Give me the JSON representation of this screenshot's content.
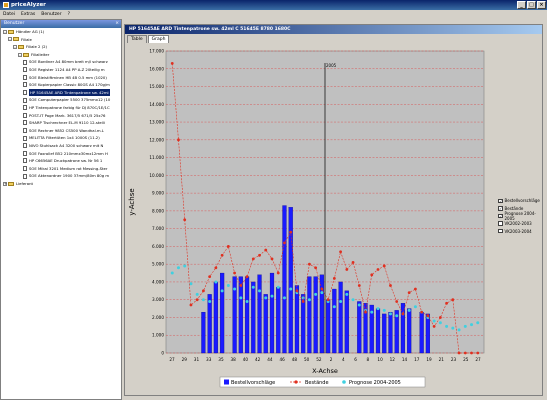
{
  "app": {
    "title": "priceAlyzer",
    "btn_min": "_",
    "btn_max": "□",
    "btn_close": "×"
  },
  "menu": [
    "Datei",
    "Extras",
    "Benutzer",
    "?"
  ],
  "tree": {
    "header": "Benutzer",
    "header_close": "×",
    "lines": [
      {
        "text": "Händler AG (1)",
        "indent": 0,
        "kind": "folder",
        "exp": "-"
      },
      {
        "text": "Filiale",
        "indent": 1,
        "kind": "folder",
        "exp": "-"
      },
      {
        "text": "Filiale 2 (2)",
        "indent": 2,
        "kind": "folder",
        "exp": "-"
      },
      {
        "text": "Filialleiter",
        "indent": 3,
        "kind": "folder",
        "exp": "-"
      },
      {
        "text": "SOE Bordiner A4 80mm breit m/l schwarz",
        "indent": 4,
        "kind": "doc"
      },
      {
        "text": "SOE Register 1124 A4 PP A-Z 20teilig m",
        "indent": 4,
        "kind": "doc"
      },
      {
        "text": "SOE Bleistiftminen HB 4B 0.5 mm (1020)",
        "indent": 4,
        "kind": "doc"
      },
      {
        "text": "SOE Kopierpapier Classic 80GS A4 170g/m",
        "indent": 4,
        "kind": "doc"
      },
      {
        "text": "HP 51645AE ARD Tintenpatrone sw. 42ml",
        "indent": 4,
        "kind": "doc",
        "selected": true
      },
      {
        "text": "SOE Computerpapier 5500 375mmx12 (10",
        "indent": 4,
        "kind": "doc"
      },
      {
        "text": "HP Tintenpatrone farbig für DJ 870C/1E/1C",
        "indent": 4,
        "kind": "doc"
      },
      {
        "text": "POST-IT Page Mark. 3617/5 671/5 25x76",
        "indent": 4,
        "kind": "doc"
      },
      {
        "text": "SHARP Tischrechner EL-M 9110 12-stelli",
        "indent": 4,
        "kind": "doc"
      },
      {
        "text": "SOE Rechner 9852 CS500 Wandhal.m.L",
        "indent": 4,
        "kind": "doc"
      },
      {
        "text": "MELITTA Filtertüten 1x4 1000S (11.2)",
        "indent": 4,
        "kind": "doc"
      },
      {
        "text": "NIVO Stuhlsack A4 3200 schwarz mit N",
        "indent": 4,
        "kind": "doc"
      },
      {
        "text": "SOE Faxrollef B52 210mmx30mx12mm H",
        "indent": 4,
        "kind": "doc"
      },
      {
        "text": "HP C6656AE Druckpatrone sw. Nr 56 1",
        "indent": 4,
        "kind": "doc"
      },
      {
        "text": "SOE Mikal 3201 Medium rot Messing-Ster",
        "indent": 4,
        "kind": "doc"
      },
      {
        "text": "SOE Aktenordner 1900 37mm/80m 80g m",
        "indent": 4,
        "kind": "doc"
      },
      {
        "text": "Lieferant",
        "indent": 0,
        "kind": "folder",
        "exp": "+"
      }
    ]
  },
  "chart_window": {
    "title": "HP 51645AE ARD Tintenpatrone sw. 42ml C 51645E 8780 1680C",
    "tabs": [
      "Table",
      "Graph"
    ],
    "active_tab": "Graph"
  },
  "chart_data": {
    "type": "bar",
    "ylabel": "y-Achse",
    "xlabel": "X-Achse",
    "ylim": [
      0,
      17000
    ],
    "yticks": [
      0,
      1000,
      2000,
      3000,
      4000,
      5000,
      6000,
      7000,
      8000,
      9000,
      10000,
      11000,
      12000,
      13000,
      14000,
      15000,
      16000,
      17000
    ],
    "ytick_labels": [
      "0",
      "1.000",
      "2.000",
      "3.000",
      "4.000",
      "5.000",
      "6.000",
      "7.000",
      "8.000",
      "9.000",
      "10.000",
      "11.000",
      "12.000",
      "13.000",
      "14.000",
      "15.000",
      "16.000",
      "17.000"
    ],
    "xtick_labels": [
      "27",
      "29",
      "31",
      "33",
      "35",
      "38",
      "40",
      "42",
      "44",
      "46",
      "48",
      "50",
      "52",
      "2",
      "4",
      "6",
      "8",
      "10",
      "12",
      "14",
      "17",
      "19",
      "21",
      "23",
      "25",
      "27"
    ],
    "grid": true,
    "marker_line_label": "2005",
    "marker_line_index": 22,
    "series": [
      {
        "name": "Bestellvorschläge",
        "kind": "bar",
        "values": [
          0,
          0,
          0,
          0,
          0,
          2300,
          3300,
          4000,
          4500,
          0,
          4300,
          4300,
          4300,
          4000,
          4400,
          3300,
          4500,
          3700,
          8300,
          8200,
          3800,
          3300,
          4300,
          4300,
          4400,
          3000,
          3600,
          4000,
          3500,
          0,
          2900,
          2800,
          2700,
          2500,
          2200,
          2300,
          2400,
          2800,
          2500,
          0,
          2300,
          2200,
          0,
          0,
          0,
          0,
          0,
          0,
          0,
          0
        ]
      },
      {
        "name": "Bestände",
        "kind": "line",
        "color": "#e03020",
        "values": [
          16300,
          12000,
          7500,
          2700,
          3000,
          3500,
          4300,
          4800,
          5500,
          6000,
          4500,
          3800,
          4300,
          5300,
          5500,
          5800,
          5300,
          4500,
          6200,
          6800,
          3500,
          2900,
          5000,
          4800,
          3600,
          3000,
          4200,
          5700,
          4700,
          5100,
          3800,
          2300,
          4400,
          4700,
          4900,
          3800,
          2900,
          2200,
          3400,
          3600,
          2300,
          2100,
          1500,
          2000,
          2800,
          3000,
          0,
          0,
          0,
          0
        ]
      },
      {
        "name": "Prognose 2004-2005",
        "kind": "scatter",
        "color": "#40d0e0",
        "values": [
          4500,
          4800,
          4900,
          3900,
          3300,
          3000,
          2900,
          4000,
          3500,
          3800,
          3600,
          3100,
          2900,
          3700,
          3500,
          3100,
          3200,
          3700,
          3100,
          3600,
          3400,
          3100,
          3000,
          3300,
          3400,
          2900,
          2600,
          2900,
          3300,
          3000,
          2700,
          2400,
          2300,
          2500,
          2400,
          2200,
          2100,
          2200,
          2400,
          2600,
          2300,
          2000,
          1800,
          1700,
          1500,
          1400,
          1300,
          1500,
          1600,
          1700
        ]
      }
    ],
    "legend_bottom": [
      "Bestellvorschläge",
      "Bestände",
      "Prognose 2004-2005"
    ],
    "legend_right": [
      {
        "label": "Bestellvorschläge",
        "checked": true
      },
      {
        "label": "Bestände",
        "checked": true
      },
      {
        "label": "Prognose 2004-2005",
        "checked": true
      },
      {
        "label": "VK2002-2003",
        "checked": false
      },
      {
        "label": "VK2003-2004",
        "checked": false
      }
    ],
    "colors": {
      "bar": "#1a1aff",
      "plot_bg": "#c0c0c0",
      "grid": "#e04040"
    }
  }
}
